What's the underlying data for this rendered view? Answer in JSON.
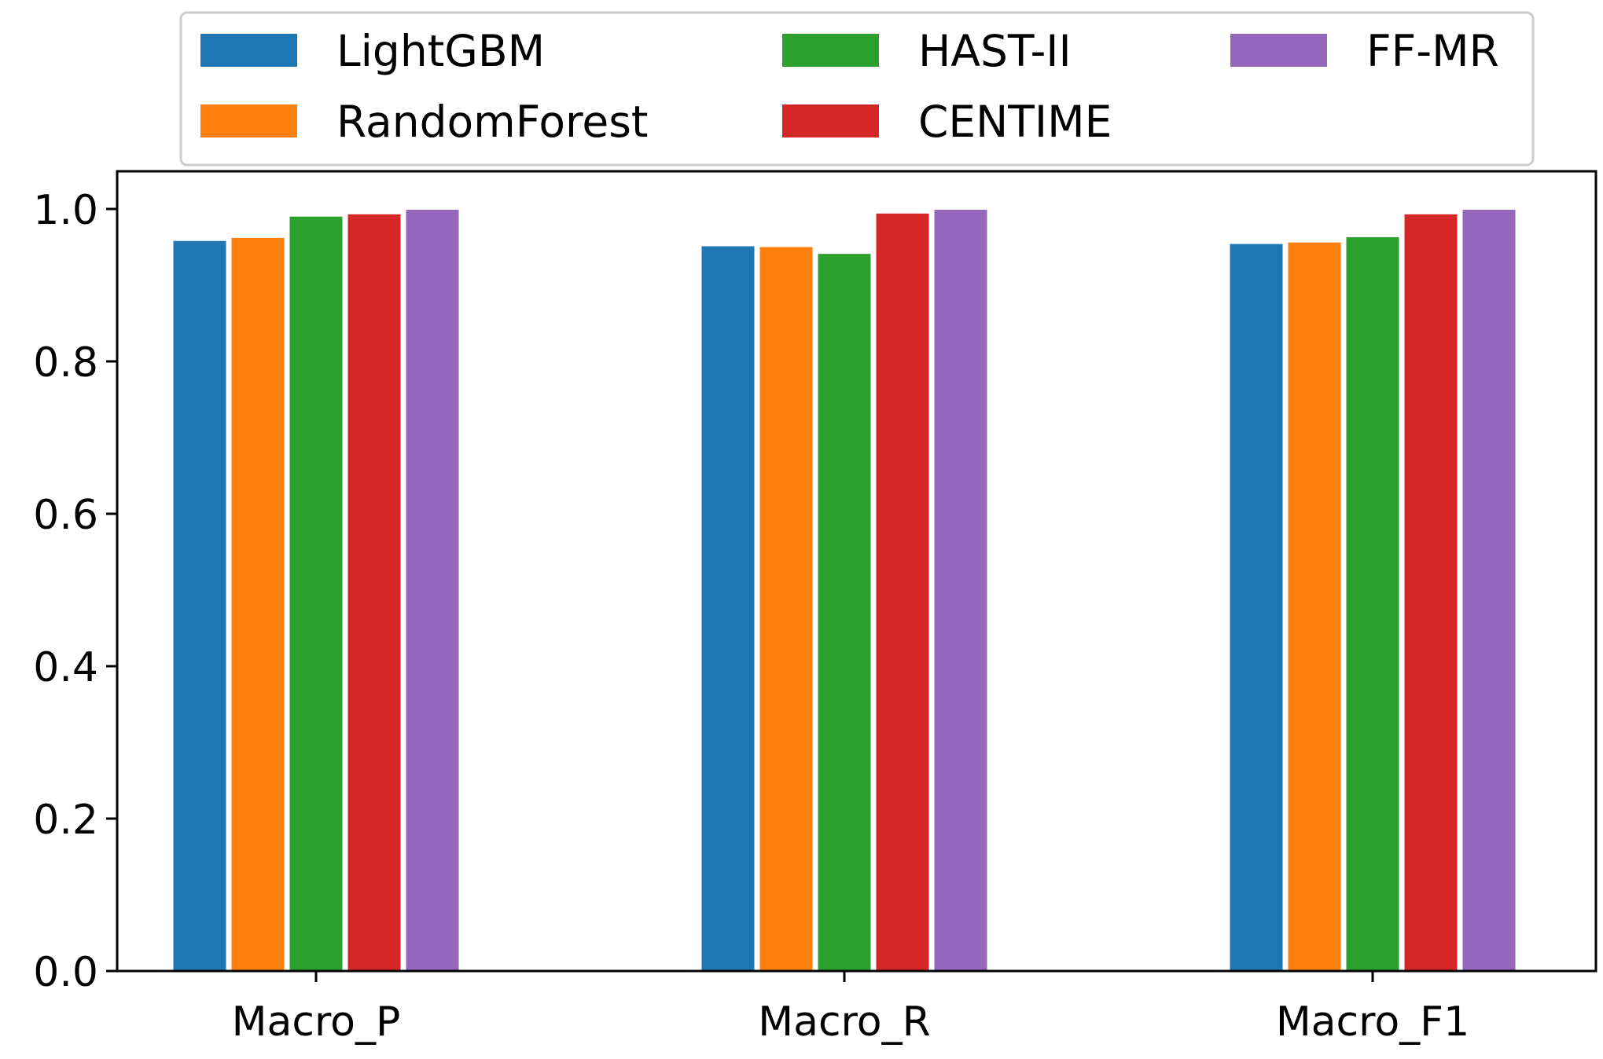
{
  "chart_data": {
    "type": "bar",
    "title": "",
    "xlabel": "",
    "ylabel": "",
    "categories": [
      "Macro_P",
      "Macro_R",
      "Macro_F1"
    ],
    "series": [
      {
        "name": "LightGBM",
        "color": "#1f77b4",
        "values": [
          0.958,
          0.951,
          0.954
        ]
      },
      {
        "name": "RandomForest",
        "color": "#ff7f0e",
        "values": [
          0.962,
          0.95,
          0.956
        ]
      },
      {
        "name": "HAST-II",
        "color": "#2ca02c",
        "values": [
          0.99,
          0.941,
          0.963
        ]
      },
      {
        "name": "CENTIME",
        "color": "#d62728",
        "values": [
          0.993,
          0.994,
          0.993
        ]
      },
      {
        "name": "FF-MR",
        "color": "#9467bd",
        "values": [
          0.999,
          0.999,
          0.999
        ]
      }
    ],
    "ylim": [
      0,
      1.05
    ],
    "yticks": [
      "0.0",
      "0.2",
      "0.4",
      "0.6",
      "0.8",
      "1.0"
    ],
    "grid": false,
    "legend_position": "top"
  }
}
